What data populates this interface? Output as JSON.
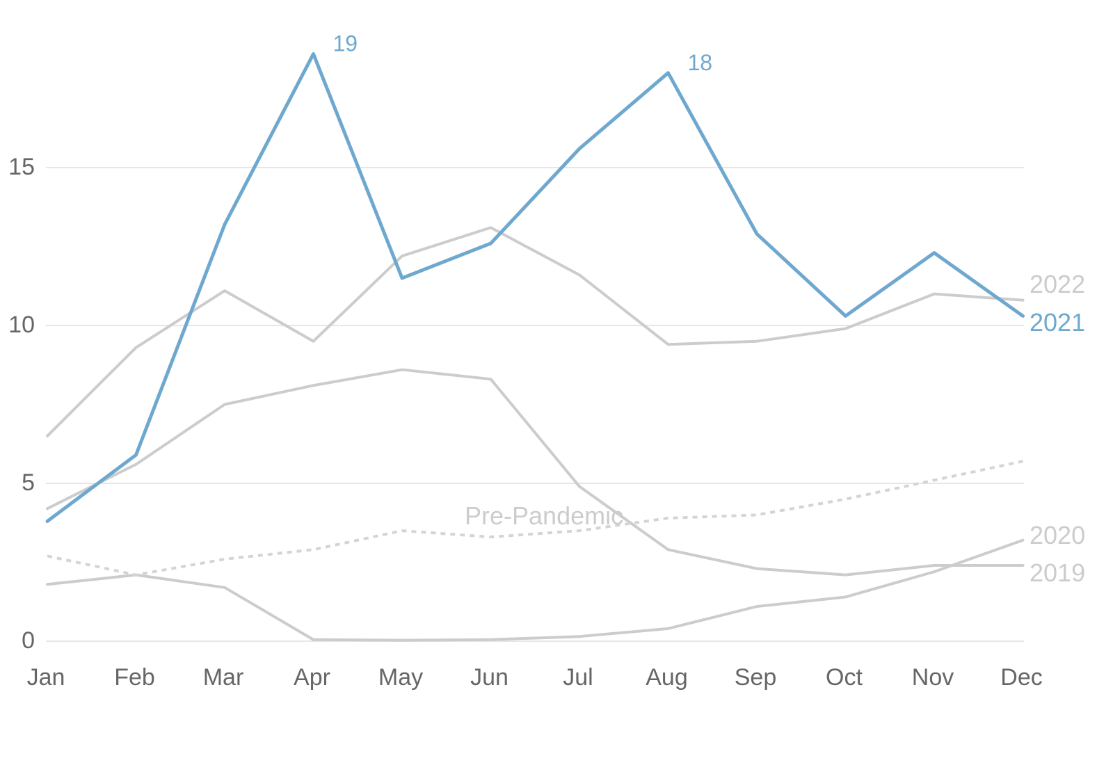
{
  "chart_data": {
    "type": "line",
    "categories": [
      "Jan",
      "Feb",
      "Mar",
      "Apr",
      "May",
      "Jun",
      "Jul",
      "Aug",
      "Sep",
      "Oct",
      "Nov",
      "Dec"
    ],
    "ylim": [
      0,
      20
    ],
    "yticks": [
      0,
      5,
      10,
      15
    ],
    "grid": "horizontal",
    "series": [
      {
        "name": "2021",
        "values": [
          3.8,
          5.9,
          13.2,
          18.6,
          11.5,
          12.6,
          15.6,
          18.0,
          12.9,
          10.3,
          12.3,
          10.3
        ],
        "color": "#6fa8cf",
        "dashed": false
      },
      {
        "name": "2022",
        "values": [
          6.5,
          9.3,
          11.1,
          9.5,
          12.2,
          13.1,
          11.6,
          9.4,
          9.5,
          9.9,
          11.0,
          10.8
        ],
        "color": "#cccccc",
        "dashed": false
      },
      {
        "name": "2020",
        "values": [
          1.8,
          2.1,
          1.7,
          0.05,
          0.03,
          0.05,
          0.15,
          0.4,
          1.1,
          1.4,
          2.2,
          3.2
        ],
        "color": "#cccccc",
        "dashed": false
      },
      {
        "name": "2019",
        "values": [
          4.2,
          5.6,
          7.5,
          8.1,
          8.6,
          8.3,
          4.9,
          2.9,
          2.3,
          2.1,
          2.4,
          2.4
        ],
        "color": "#cccccc",
        "dashed": false
      },
      {
        "name": "Pre-Pandemic",
        "values": [
          2.7,
          2.1,
          2.6,
          2.9,
          3.5,
          3.3,
          3.5,
          3.9,
          4.0,
          4.5,
          5.1,
          5.7
        ],
        "color": "#d4d4d4",
        "dashed": true
      }
    ],
    "annotations": [
      {
        "series": "2021",
        "category": "Apr",
        "value": 18.6,
        "text": "19"
      },
      {
        "series": "2021",
        "category": "Aug",
        "value": 18.0,
        "text": "18"
      }
    ]
  }
}
